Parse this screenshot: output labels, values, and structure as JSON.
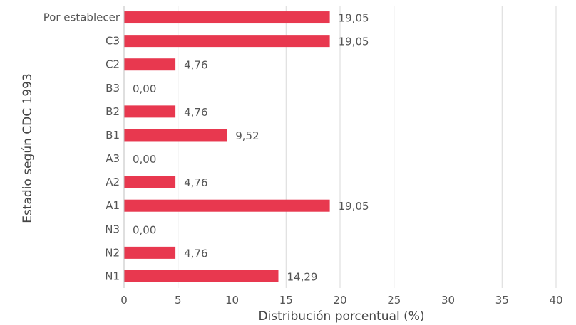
{
  "chart_data": {
    "type": "bar",
    "orientation": "horizontal",
    "categories": [
      "Por establecer",
      "C3",
      "C2",
      "B3",
      "B2",
      "B1",
      "A3",
      "A2",
      "A1",
      "N3",
      "N2",
      "N1"
    ],
    "values": [
      19.05,
      19.05,
      4.76,
      0.0,
      4.76,
      9.52,
      0.0,
      4.76,
      19.05,
      0.0,
      4.76,
      14.29
    ],
    "value_labels": [
      "19,05",
      "19,05",
      "4,76",
      "0,00",
      "4,76",
      "9,52",
      "0,00",
      "4,76",
      "19,05",
      "0,00",
      "4,76",
      "14,29"
    ],
    "xlabel": "Distribución porcentual (%)",
    "ylabel": "Estadio según CDC 1993",
    "xlim": [
      0,
      40
    ],
    "xticks": [
      0,
      5,
      10,
      15,
      20,
      25,
      30,
      35,
      40
    ],
    "grid": "vertical",
    "bar_color": "#e8384f"
  }
}
